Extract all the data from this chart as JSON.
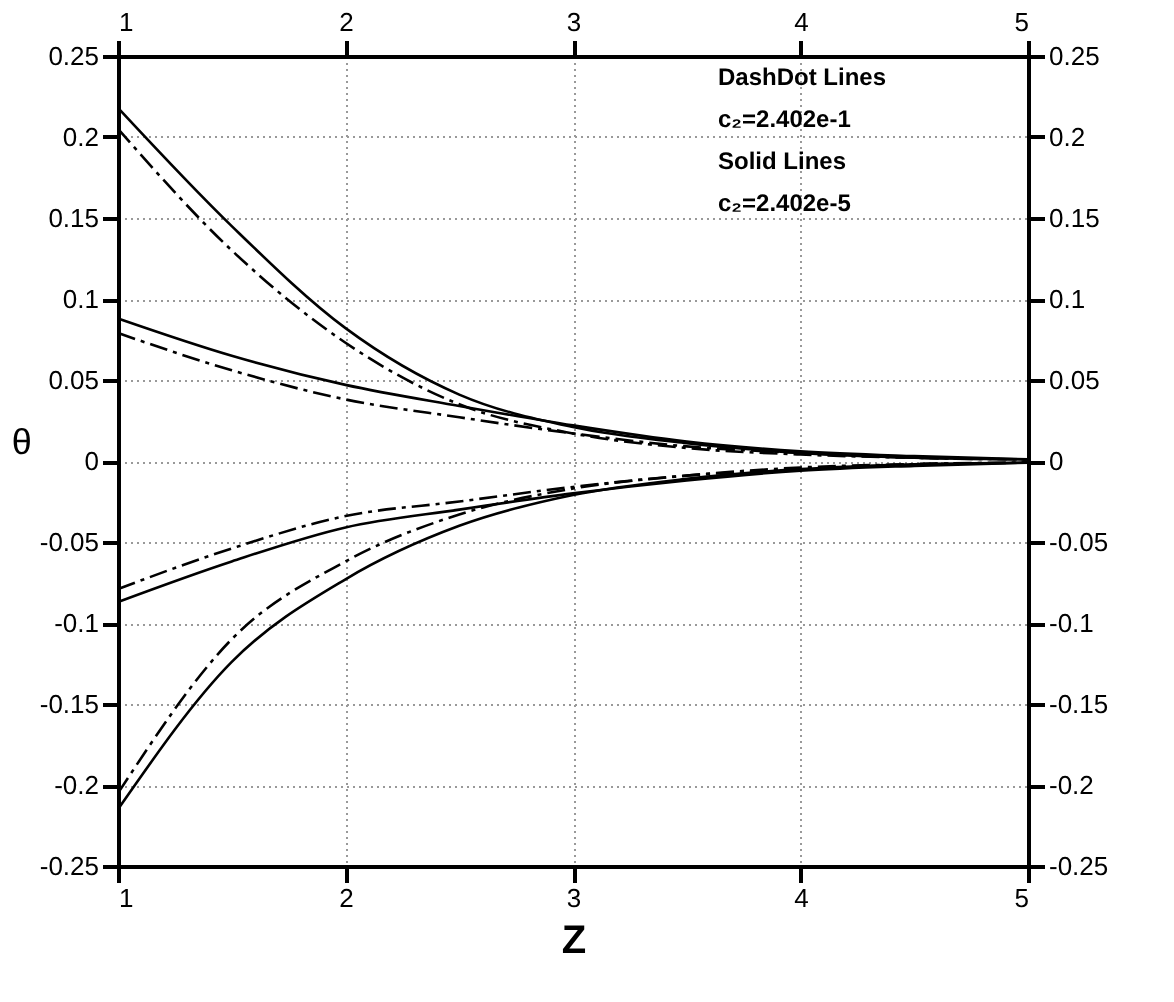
{
  "chart_data": {
    "type": "line",
    "xlabel": "Z",
    "ylabel": "θ",
    "x": [
      1,
      1.5,
      2,
      2.5,
      3,
      3.5,
      4,
      4.5,
      5
    ],
    "xlim": [
      1,
      5
    ],
    "xticks": [
      1,
      2,
      3,
      4,
      5
    ],
    "x2lim": [
      1,
      5
    ],
    "x2ticks": [
      1,
      2,
      3,
      4,
      5
    ],
    "ylim": [
      -0.25,
      0.25
    ],
    "yticks": [
      -0.25,
      -0.2,
      -0.15,
      -0.1,
      -0.05,
      0,
      0.05,
      0.1,
      0.15,
      0.2,
      0.25
    ],
    "y2lim": [
      -0.25,
      0.25
    ],
    "y2ticks": [
      -0.25,
      -0.2,
      -0.15,
      -0.1,
      -0.05,
      0,
      0.05,
      0.1,
      0.15,
      0.2,
      0.25
    ],
    "grid": true,
    "marker": "none",
    "annotations": [
      "DashDot Lines",
      "c₂=2.402e-1",
      "Solid Lines",
      "c₂=2.402e-5"
    ],
    "series": [
      {
        "color": "#000000",
        "line_style": "solid",
        "values": [
          0.218,
          0.145,
          0.082,
          0.041,
          0.021,
          0.011,
          0.005,
          0.002,
          0.001
        ]
      },
      {
        "color": "#000000",
        "line_style": "dashdot",
        "values": [
          0.205,
          0.13,
          0.073,
          0.035,
          0.017,
          0.008,
          0.004,
          0.002,
          0.001
        ]
      },
      {
        "color": "#000000",
        "line_style": "solid",
        "values": [
          0.088,
          0.065,
          0.047,
          0.034,
          0.022,
          0.012,
          0.006,
          0.003,
          0.001
        ]
      },
      {
        "color": "#000000",
        "line_style": "dashdot",
        "values": [
          0.079,
          0.056,
          0.038,
          0.027,
          0.017,
          0.009,
          0.005,
          0.002,
          0.001
        ]
      },
      {
        "color": "#000000",
        "line_style": "solid",
        "values": [
          -0.087,
          -0.062,
          -0.041,
          -0.03,
          -0.02,
          -0.012,
          -0.006,
          -0.003,
          -0.001
        ]
      },
      {
        "color": "#000000",
        "line_style": "dashdot",
        "values": [
          -0.079,
          -0.054,
          -0.034,
          -0.025,
          -0.016,
          -0.009,
          -0.005,
          -0.002,
          -0.001
        ]
      },
      {
        "color": "#000000",
        "line_style": "solid",
        "values": [
          -0.215,
          -0.124,
          -0.073,
          -0.04,
          -0.021,
          -0.011,
          -0.005,
          -0.002,
          -0.001
        ]
      },
      {
        "color": "#000000",
        "line_style": "dashdot",
        "values": [
          -0.205,
          -0.11,
          -0.062,
          -0.033,
          -0.017,
          -0.009,
          -0.004,
          -0.002,
          -0.001
        ]
      }
    ]
  }
}
